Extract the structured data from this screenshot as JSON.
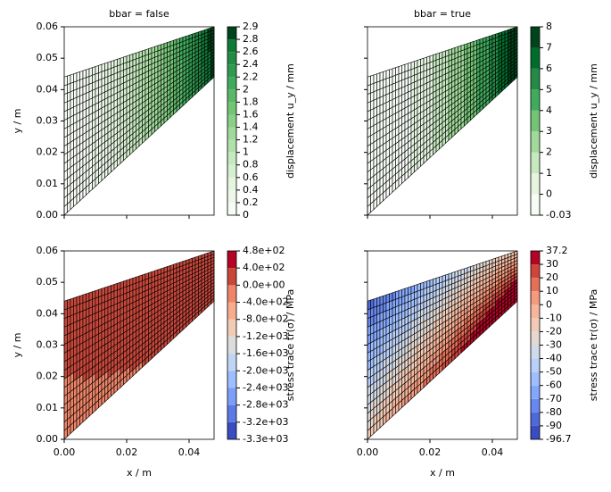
{
  "chart_data": [
    {
      "type": "mesh",
      "title": "bbar = false",
      "ylabel": "y / m",
      "xlim": [
        0,
        0.048
      ],
      "ylim": [
        0,
        0.06
      ],
      "xticks": [
        0,
        0.02,
        0.04
      ],
      "yticks": [
        {
          "value": 0,
          "label": "0.00"
        },
        {
          "value": 0.01,
          "label": "0.01"
        },
        {
          "value": 0.02,
          "label": "0.02"
        },
        {
          "value": 0.03,
          "label": "0.03"
        },
        {
          "value": 0.04,
          "label": "0.04"
        },
        {
          "value": 0.05,
          "label": "0.05"
        },
        {
          "value": 0.06,
          "label": "0.06"
        }
      ],
      "colorbar": {
        "label": "displacement u_y / mm",
        "levels": [
          0,
          0.2,
          0.4,
          0.6,
          0.8,
          1,
          1.2,
          1.4,
          1.6,
          1.8,
          2,
          2.2,
          2.4,
          2.6,
          2.8,
          2.9
        ],
        "colors": [
          "#f7fcf5",
          "#eef8ea",
          "#e5f5e0",
          "#d6efd0",
          "#c7e9c0",
          "#b1e0ab",
          "#a1d99b",
          "#8ace88",
          "#74c476",
          "#5bb86a",
          "#41ab5d",
          "#319a50",
          "#238b45",
          "#0f7a37",
          "#00441b"
        ]
      }
    },
    {
      "type": "mesh",
      "title": "bbar = true",
      "xlim": [
        0,
        0.048
      ],
      "ylim": [
        0,
        0.06
      ],
      "xticks": [
        0,
        0.02,
        0.04
      ],
      "yticks": [
        0,
        0.01,
        0.02,
        0.03,
        0.04,
        0.05,
        0.06
      ],
      "colorbar": {
        "label": "displacement u_y / mm",
        "levels": [
          -0.03,
          0,
          1,
          2,
          3,
          4,
          5,
          6,
          7,
          8
        ],
        "colors": [
          "#f7fcf5",
          "#e5f5e0",
          "#c7e9c0",
          "#a1d99b",
          "#74c476",
          "#41ab5d",
          "#238b45",
          "#006d2c",
          "#00441b"
        ]
      }
    },
    {
      "type": "mesh",
      "ylabel": "y / m",
      "xlabel": "x / m",
      "xlim": [
        0,
        0.048
      ],
      "ylim": [
        0,
        0.06
      ],
      "xticks": [
        {
          "value": 0,
          "label": "0.00"
        },
        {
          "value": 0.02,
          "label": "0.02"
        },
        {
          "value": 0.04,
          "label": "0.04"
        }
      ],
      "yticks": [
        {
          "value": 0,
          "label": "0.00"
        },
        {
          "value": 0.01,
          "label": "0.01"
        },
        {
          "value": 0.02,
          "label": "0.02"
        },
        {
          "value": 0.03,
          "label": "0.03"
        },
        {
          "value": 0.04,
          "label": "0.04"
        },
        {
          "value": 0.05,
          "label": "0.05"
        },
        {
          "value": 0.06,
          "label": "0.06"
        }
      ],
      "colorbar": {
        "label": "stress trace tr(σ) / MPa",
        "levels": [
          {
            "value": -3300,
            "label": "-3.3e+03"
          },
          {
            "value": -3200,
            "label": "-3.2e+03"
          },
          {
            "value": -2800,
            "label": "-2.8e+03"
          },
          {
            "value": -2400,
            "label": "-2.4e+03"
          },
          {
            "value": -2000,
            "label": "-2.0e+03"
          },
          {
            "value": -1600,
            "label": "-1.6e+03"
          },
          {
            "value": -1200,
            "label": "-1.2e+03"
          },
          {
            "value": -800,
            "label": "-8.0e+02"
          },
          {
            "value": -400,
            "label": "-4.0e+02"
          },
          {
            "value": 0,
            "label": "0.0e+00"
          },
          {
            "value": 400,
            "label": "4.0e+02"
          },
          {
            "value": 480,
            "label": "4.8e+02"
          }
        ],
        "colors": [
          "#3b4cc0",
          "#5b7ae5",
          "#7b9ff9",
          "#9ebeff",
          "#c0d4f5",
          "#dddcdc",
          "#f2cbb7",
          "#f7ac8e",
          "#ee8468",
          "#c8473b",
          "#b40426"
        ]
      }
    },
    {
      "type": "mesh",
      "xlabel": "x / m",
      "xlim": [
        0,
        0.048
      ],
      "ylim": [
        0,
        0.06
      ],
      "xticks": [
        {
          "value": 0,
          "label": "0.00"
        },
        {
          "value": 0.02,
          "label": "0.02"
        },
        {
          "value": 0.04,
          "label": "0.04"
        }
      ],
      "yticks": [
        0,
        0.01,
        0.02,
        0.03,
        0.04,
        0.05,
        0.06
      ],
      "colorbar": {
        "label": "stress trace tr(σ) / MPa",
        "levels": [
          -96.7,
          -90,
          -80,
          -70,
          -60,
          -50,
          -40,
          -30,
          -20,
          -10,
          0,
          10,
          20,
          30,
          37.2
        ],
        "colors": [
          "#3b4cc0",
          "#4f69d9",
          "#6788ee",
          "#84a7fc",
          "#9ebeff",
          "#b9d0f9",
          "#d1dae9",
          "#e4d9d2",
          "#f2cbb7",
          "#f5b69c",
          "#f39b7f",
          "#e57058",
          "#cf453c",
          "#b40426"
        ]
      }
    }
  ]
}
